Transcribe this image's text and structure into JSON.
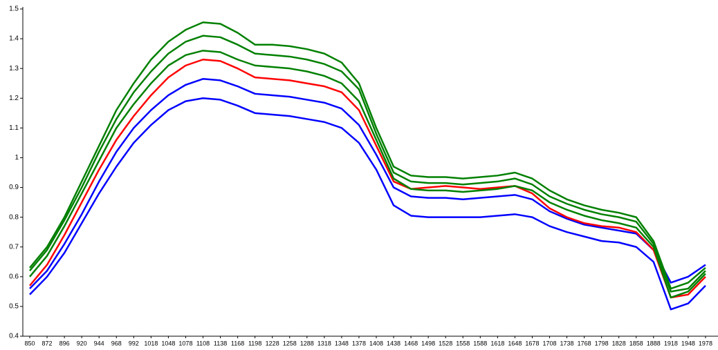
{
  "chart_data": {
    "type": "line",
    "categories": [
      "850",
      "872",
      "896",
      "920",
      "944",
      "968",
      "992",
      "1018",
      "1048",
      "1078",
      "1108",
      "1138",
      "1168",
      "1198",
      "1228",
      "1258",
      "1288",
      "1318",
      "1348",
      "1378",
      "1408",
      "1438",
      "1468",
      "1498",
      "1528",
      "1558",
      "1588",
      "1618",
      "1648",
      "1678",
      "1708",
      "1738",
      "1768",
      "1798",
      "1828",
      "1858",
      "1888",
      "1918",
      "1948",
      "1978"
    ],
    "ylim": [
      0.4,
      1.5
    ],
    "yticks": [
      0.4,
      0.5,
      0.6,
      0.7,
      0.8,
      0.9,
      1,
      1.1,
      1.2,
      1.3,
      1.4,
      1.5
    ],
    "series": [
      {
        "color": "#0000ff",
        "values": [
          0.54,
          0.6,
          0.68,
          0.78,
          0.88,
          0.97,
          1.05,
          1.11,
          1.16,
          1.19,
          1.2,
          1.195,
          1.175,
          1.15,
          1.145,
          1.14,
          1.13,
          1.12,
          1.1,
          1.05,
          0.96,
          0.84,
          0.805,
          0.8,
          0.8,
          0.8,
          0.8,
          0.805,
          0.81,
          0.8,
          0.77,
          0.75,
          0.735,
          0.72,
          0.715,
          0.7,
          0.65,
          0.49,
          0.51,
          0.57
        ]
      },
      {
        "color": "#0000ff",
        "values": [
          0.56,
          0.62,
          0.71,
          0.81,
          0.92,
          1.02,
          1.1,
          1.16,
          1.21,
          1.245,
          1.265,
          1.26,
          1.24,
          1.215,
          1.21,
          1.205,
          1.195,
          1.185,
          1.165,
          1.11,
          1.01,
          0.9,
          0.87,
          0.865,
          0.865,
          0.86,
          0.865,
          0.87,
          0.875,
          0.86,
          0.82,
          0.795,
          0.775,
          0.765,
          0.755,
          0.745,
          0.69,
          0.58,
          0.6,
          0.64
        ]
      },
      {
        "color": "#ff0000",
        "values": [
          0.57,
          0.64,
          0.74,
          0.85,
          0.96,
          1.06,
          1.14,
          1.21,
          1.27,
          1.31,
          1.33,
          1.325,
          1.3,
          1.27,
          1.265,
          1.26,
          1.25,
          1.24,
          1.22,
          1.16,
          1.04,
          0.92,
          0.895,
          0.9,
          0.905,
          0.9,
          0.895,
          0.9,
          0.905,
          0.88,
          0.83,
          0.8,
          0.78,
          0.77,
          0.765,
          0.75,
          0.69,
          0.53,
          0.54,
          0.6
        ]
      },
      {
        "color": "#008000",
        "values": [
          0.6,
          0.67,
          0.77,
          0.88,
          0.99,
          1.1,
          1.18,
          1.25,
          1.31,
          1.345,
          1.36,
          1.355,
          1.33,
          1.31,
          1.305,
          1.3,
          1.29,
          1.275,
          1.25,
          1.19,
          1.06,
          0.93,
          0.895,
          0.89,
          0.89,
          0.885,
          0.89,
          0.895,
          0.905,
          0.89,
          0.85,
          0.825,
          0.805,
          0.79,
          0.78,
          0.765,
          0.7,
          0.53,
          0.55,
          0.61
        ]
      },
      {
        "color": "#008000",
        "values": [
          0.62,
          0.69,
          0.79,
          0.9,
          1.02,
          1.13,
          1.22,
          1.29,
          1.35,
          1.39,
          1.41,
          1.405,
          1.38,
          1.35,
          1.345,
          1.34,
          1.33,
          1.315,
          1.29,
          1.23,
          1.08,
          0.95,
          0.92,
          0.915,
          0.915,
          0.91,
          0.915,
          0.92,
          0.93,
          0.91,
          0.87,
          0.845,
          0.825,
          0.81,
          0.8,
          0.785,
          0.71,
          0.55,
          0.56,
          0.62
        ]
      },
      {
        "color": "#008000",
        "values": [
          0.63,
          0.7,
          0.8,
          0.92,
          1.04,
          1.16,
          1.25,
          1.33,
          1.39,
          1.43,
          1.455,
          1.45,
          1.42,
          1.38,
          1.38,
          1.375,
          1.365,
          1.35,
          1.32,
          1.25,
          1.1,
          0.97,
          0.94,
          0.935,
          0.935,
          0.93,
          0.935,
          0.94,
          0.95,
          0.93,
          0.89,
          0.86,
          0.84,
          0.825,
          0.815,
          0.8,
          0.72,
          0.56,
          0.58,
          0.63
        ]
      }
    ]
  }
}
